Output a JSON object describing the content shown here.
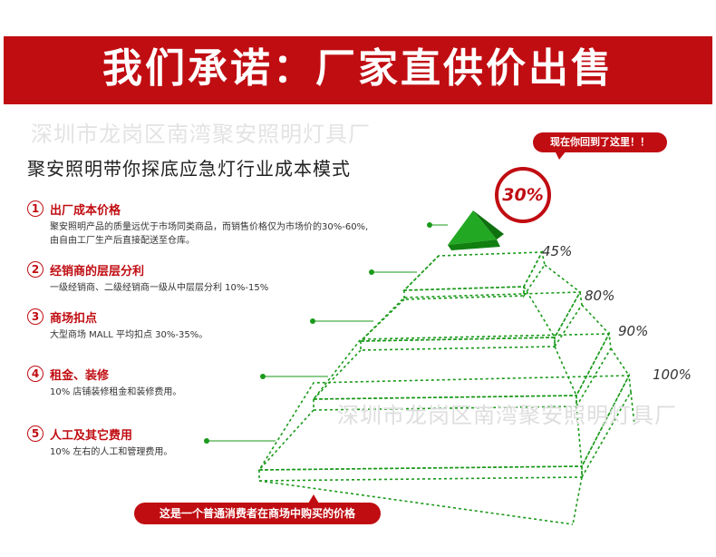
{
  "banner": {
    "title": "我们承诺：厂家直供价出售"
  },
  "watermark": {
    "text": "深圳市龙岗区南湾聚安照明灯具厂"
  },
  "subtitle": "聚安照明带你探底应急灯行业成本模式",
  "items": [
    {
      "num": "1",
      "title": "出厂成本价格",
      "desc": [
        "聚安照明产品的质量远优于市场同类商品，而销售价格仅为市场价的30%-60%,",
        "由自由工厂生产后直接配送至仓库。"
      ]
    },
    {
      "num": "2",
      "title": "经销商的层层分利",
      "desc": [
        "一级经销商、二级经销商一级从中层层分利 10%-15%"
      ]
    },
    {
      "num": "3",
      "title": "商场扣点",
      "desc": [
        "大型商场 MALL 平均扣点 30%-35%。"
      ]
    },
    {
      "num": "4",
      "title": "租金、装修",
      "desc": [
        "10% 店铺装修租金和装修费用。"
      ]
    },
    {
      "num": "5",
      "title": "人工及其它费用",
      "desc": [
        "10% 左右的人工和管理费用。"
      ]
    }
  ],
  "callout": {
    "text": "现在你回到了这里！！"
  },
  "badge": {
    "text": "30%"
  },
  "levels": [
    "45%",
    "80%",
    "90%",
    "100%"
  ],
  "footer": {
    "text": "这是一个普通消费者在商场中购买的价格"
  },
  "colors": {
    "accent": "#c00d12",
    "pyramid": "#1a9a1a",
    "pyramid_top": "#138a13"
  }
}
